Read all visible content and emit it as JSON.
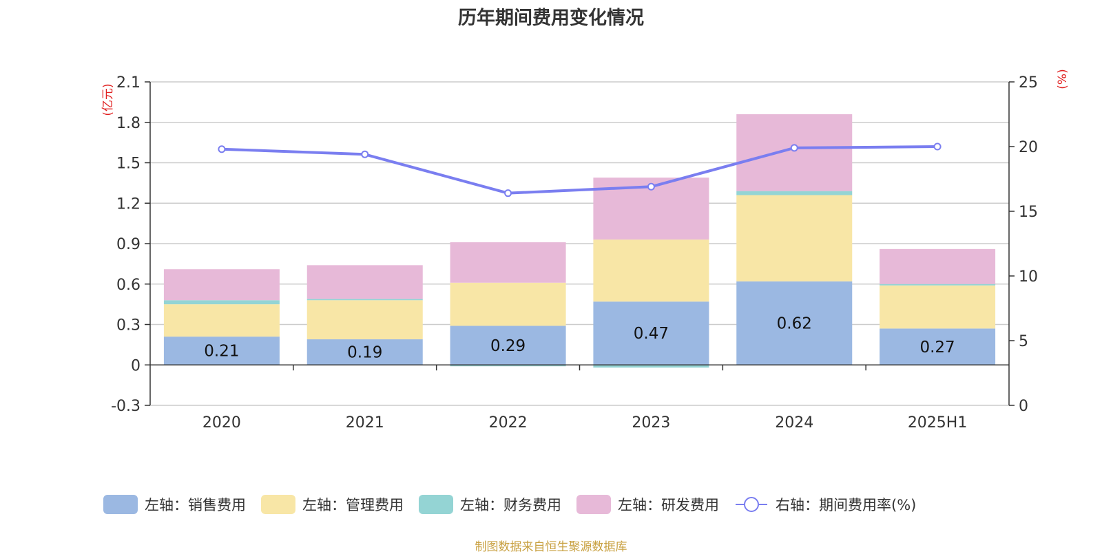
{
  "title": "历年期间费用变化情况",
  "source": "制图数据来自恒生聚源数据库",
  "chart_data": {
    "type": "bar",
    "stacked": true,
    "categories": [
      "2020",
      "2021",
      "2022",
      "2023",
      "2024",
      "2025H1"
    ],
    "y_left": {
      "label": "(亿元)",
      "range": [
        -0.3,
        2.1
      ],
      "ticks": [
        "-0.3",
        "0",
        "0.3",
        "0.6",
        "0.9",
        "1.2",
        "1.5",
        "1.8",
        "2.1"
      ],
      "tick_values": [
        -0.3,
        0,
        0.3,
        0.6,
        0.9,
        1.2,
        1.5,
        1.8,
        2.1
      ]
    },
    "y_right": {
      "label": "(%)",
      "range": [
        0,
        25
      ],
      "ticks": [
        "0",
        "5",
        "10",
        "15",
        "20",
        "25"
      ],
      "tick_values": [
        0,
        5,
        10,
        15,
        20,
        25
      ]
    },
    "grid": true,
    "legend_position": "bottom",
    "series": [
      {
        "name": "左轴：销售费用",
        "axis": "left",
        "type": "bar",
        "color": "#9bb8e2",
        "values": [
          0.21,
          0.19,
          0.29,
          0.47,
          0.62,
          0.27
        ],
        "labels": [
          "0.21",
          "0.19",
          "0.29",
          "0.47",
          "0.62",
          "0.27"
        ]
      },
      {
        "name": "左轴：管理费用",
        "axis": "left",
        "type": "bar",
        "color": "#f8e6a6",
        "values": [
          0.24,
          0.29,
          0.32,
          0.46,
          0.64,
          0.32
        ]
      },
      {
        "name": "左轴：财务费用",
        "axis": "left",
        "type": "bar",
        "color": "#94d4d4",
        "values": [
          0.03,
          0.01,
          -0.01,
          -0.02,
          0.03,
          0.01
        ]
      },
      {
        "name": "左轴：研发费用",
        "axis": "left",
        "type": "bar",
        "color": "#e7b9d8",
        "values": [
          0.23,
          0.25,
          0.3,
          0.46,
          0.57,
          0.26
        ]
      },
      {
        "name": "右轴：期间费用率(%)",
        "axis": "right",
        "type": "line",
        "color": "#7a7ef0",
        "values": [
          19.8,
          19.4,
          16.4,
          16.9,
          19.9,
          20.0
        ]
      }
    ]
  }
}
